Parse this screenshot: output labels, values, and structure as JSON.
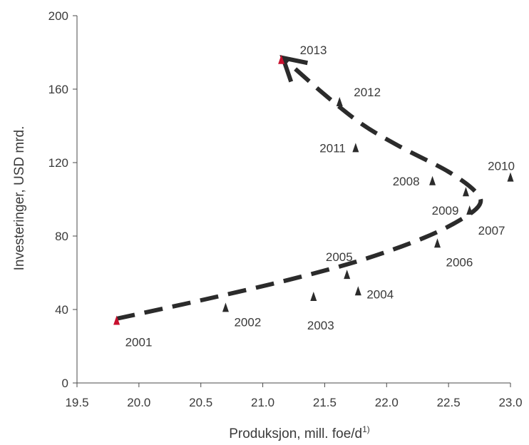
{
  "chart_data": {
    "type": "scatter",
    "title": "",
    "xlabel": "Produksjon, mill. foe/d",
    "xlabel_sup": "1)",
    "ylabel": "Investeringer, USD mrd.",
    "xlim": [
      19.5,
      23.0
    ],
    "ylim": [
      0,
      200
    ],
    "x_ticks": [
      "19.5",
      "20.0",
      "20.5",
      "21.0",
      "21.5",
      "22.0",
      "22.5",
      "23.0"
    ],
    "y_ticks": [
      "0",
      "40",
      "80",
      "120",
      "160",
      "200"
    ],
    "grid": false,
    "legend": "none",
    "points": [
      {
        "label": "2001",
        "x": 19.82,
        "y": 34,
        "color": "#c8102e",
        "label_pos": "below-right"
      },
      {
        "label": "2002",
        "x": 20.7,
        "y": 41,
        "color": "#2b2b2b",
        "label_pos": "below-right"
      },
      {
        "label": "2003",
        "x": 21.41,
        "y": 47,
        "color": "#2b2b2b",
        "label_pos": "below"
      },
      {
        "label": "2004",
        "x": 21.77,
        "y": 50,
        "color": "#2b2b2b",
        "label_pos": "right"
      },
      {
        "label": "2005",
        "x": 21.68,
        "y": 59,
        "color": "#2b2b2b",
        "label_pos": "above-left"
      },
      {
        "label": "2006",
        "x": 22.41,
        "y": 76,
        "color": "#2b2b2b",
        "label_pos": "below-right"
      },
      {
        "label": "2007",
        "x": 22.67,
        "y": 94,
        "color": "#2b2b2b",
        "label_pos": "below-right"
      },
      {
        "label": "2008",
        "x": 22.37,
        "y": 110,
        "color": "#2b2b2b",
        "label_pos": "left"
      },
      {
        "label": "2009",
        "x": 22.64,
        "y": 104,
        "color": "#2b2b2b",
        "label_pos": "below-left"
      },
      {
        "label": "2010",
        "x": 23.0,
        "y": 112,
        "color": "#2b2b2b",
        "label_pos": "above"
      },
      {
        "label": "2011",
        "x": 21.75,
        "y": 128,
        "color": "#2b2b2b",
        "label_pos": "left"
      },
      {
        "label": "2012",
        "x": 21.62,
        "y": 153,
        "color": "#2b2b2b",
        "label_pos": "right"
      },
      {
        "label": "2013",
        "x": 21.15,
        "y": 176,
        "color": "#c8102e",
        "label_pos": "above-right"
      }
    ],
    "trend_arrow": {
      "style": "dashed",
      "color": "#2b2b2b",
      "path": [
        [
          19.82,
          35
        ],
        [
          20.5,
          45
        ],
        [
          21.2,
          56
        ],
        [
          21.8,
          67
        ],
        [
          22.3,
          79
        ],
        [
          22.6,
          89
        ],
        [
          22.75,
          97
        ],
        [
          22.72,
          104
        ],
        [
          22.5,
          115
        ],
        [
          22.1,
          129
        ],
        [
          21.8,
          141
        ],
        [
          21.5,
          157
        ],
        [
          21.18,
          176
        ]
      ]
    }
  }
}
